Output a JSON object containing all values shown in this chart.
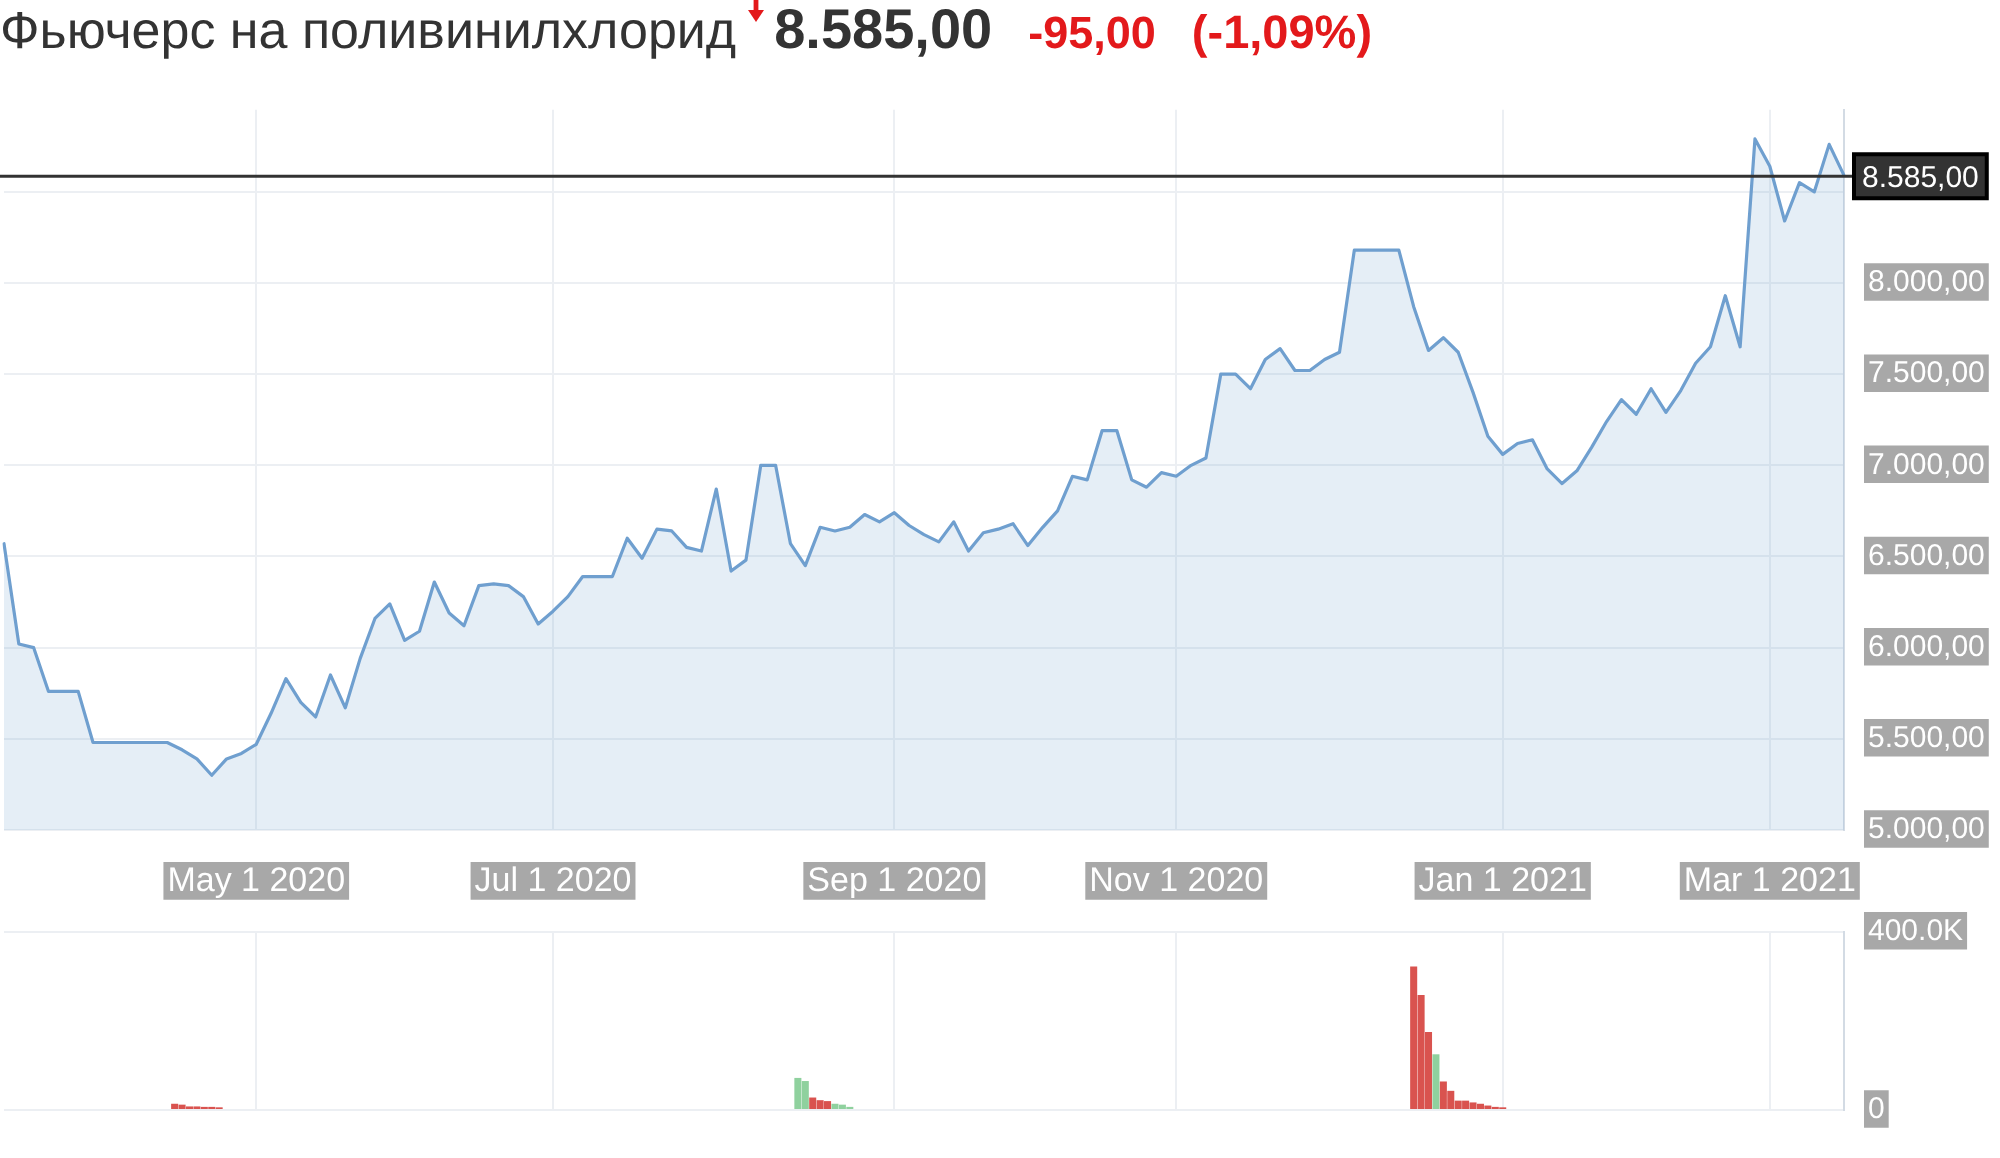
{
  "chart_data": [
    {
      "type": "area",
      "title": "Фьючерс на поливинилхлорид",
      "annotations": [
        "8.585,00",
        "-95,00",
        "(-1,09%)"
      ],
      "categories": [
        null,
        null,
        null,
        null,
        null,
        null,
        null,
        null,
        null,
        null,
        null,
        null,
        null,
        null,
        null,
        null,
        null,
        "May 1 2020",
        null,
        null,
        null,
        null,
        null,
        null,
        null,
        null,
        null,
        null,
        null,
        null,
        null,
        null,
        null,
        null,
        null,
        null,
        null,
        "Jul 1 2020",
        null,
        null,
        null,
        null,
        null,
        null,
        null,
        null,
        null,
        null,
        null,
        null,
        null,
        null,
        null,
        null,
        null,
        null,
        null,
        null,
        null,
        null,
        "Sep 1 2020",
        null,
        null,
        null,
        null,
        null,
        null,
        null,
        null,
        null,
        null,
        null,
        null,
        null,
        null,
        null,
        null,
        null,
        null,
        "Nov 1 2020",
        null,
        null,
        null,
        null,
        null,
        null,
        null,
        null,
        null,
        null,
        null,
        null,
        null,
        null,
        null,
        null,
        null,
        null,
        null,
        null,
        null,
        "Jan 1 2021",
        null,
        null,
        null,
        null,
        null,
        null,
        null,
        null,
        null,
        null,
        null,
        null,
        null,
        null,
        null,
        null,
        null,
        "Mar 1 2021",
        null,
        null,
        null,
        null,
        null
      ],
      "values": [
        6570,
        6020,
        6000,
        5760,
        5760,
        5760,
        5480,
        5480,
        5480,
        5480,
        5480,
        5480,
        5440,
        5390,
        5300,
        5390,
        5420,
        5470,
        5640,
        5830,
        5700,
        5620,
        5850,
        5670,
        5940,
        6160,
        6240,
        6040,
        6090,
        6360,
        6190,
        6120,
        6340,
        6350,
        6340,
        6280,
        6130,
        6200,
        6280,
        6390,
        6390,
        6390,
        6600,
        6490,
        6650,
        6640,
        6550,
        6530,
        6870,
        6420,
        6480,
        7000,
        7000,
        6570,
        6450,
        6660,
        6640,
        6660,
        6730,
        6690,
        6740,
        6670,
        6620,
        6580,
        6690,
        6530,
        6630,
        6650,
        6680,
        6560,
        6660,
        6750,
        6940,
        6920,
        7190,
        7190,
        6920,
        6880,
        6960,
        6940,
        7000,
        7040,
        7500,
        7500,
        7420,
        7580,
        7640,
        7520,
        7520,
        7580,
        7620,
        8180,
        8180,
        8180,
        8180,
        7870,
        7630,
        7700,
        7620,
        7400,
        7160,
        7060,
        7120,
        7140,
        6980,
        6900,
        6970,
        7100,
        7240,
        7360,
        7280,
        7420,
        7290,
        7410,
        7560,
        7650,
        7930,
        7650,
        8790,
        8640,
        8340,
        8550,
        8500,
        8760,
        8590
      ],
      "color": "#6f9fcf",
      "ylim": [
        5000,
        8950
      ],
      "yticks": [
        {
          "value": 5000,
          "label": "5.000,00"
        },
        {
          "value": 5500,
          "label": "5.500,00"
        },
        {
          "value": 6000,
          "label": "6.000,00"
        },
        {
          "value": 6500,
          "label": "6.500,00"
        },
        {
          "value": 7000,
          "label": "7.000,00"
        },
        {
          "value": 7500,
          "label": "7.500,00"
        },
        {
          "value": 8000,
          "label": "8.000,00"
        },
        {
          "value": 8500,
          "label": null
        }
      ],
      "grid": true,
      "ref_lines": [
        {
          "axis": "y",
          "value": 8585,
          "label": "8.585,00",
          "color": "#333333"
        }
      ]
    },
    {
      "type": "bar",
      "categories": [
        null,
        null,
        null,
        null,
        null,
        null,
        null,
        null,
        null,
        null,
        null,
        null,
        null,
        null,
        null,
        null,
        null,
        null,
        null,
        null,
        null,
        null,
        null,
        null,
        null,
        null,
        null,
        null,
        null,
        null,
        null,
        null,
        null,
        null,
        null,
        null,
        null,
        null,
        null,
        null,
        null,
        null,
        null,
        null,
        null,
        null,
        null,
        null,
        null,
        null,
        null,
        null,
        null,
        null,
        null,
        null,
        null,
        null,
        null,
        null,
        null,
        null,
        null,
        null,
        null,
        null,
        null,
        null,
        null,
        null,
        null,
        null,
        null,
        null,
        null,
        null,
        null,
        null,
        null,
        null,
        null,
        null,
        null,
        null,
        null,
        null,
        null,
        null,
        null,
        null,
        null,
        null,
        null,
        null,
        null,
        null,
        null,
        null,
        null,
        null,
        null,
        null,
        null,
        null,
        null,
        null,
        null,
        null,
        null,
        null,
        null,
        null,
        null,
        null,
        null,
        null,
        null,
        null,
        null,
        null,
        null,
        null,
        null,
        null,
        null,
        null,
        null,
        null,
        null,
        null,
        null,
        null,
        null,
        null,
        null,
        null,
        null,
        null,
        null,
        null,
        null,
        null,
        null,
        null,
        null,
        null,
        null,
        null,
        null,
        null,
        null,
        null,
        null,
        null,
        null,
        null,
        null,
        null,
        null,
        null,
        null,
        null,
        null,
        null,
        null,
        null,
        null,
        null,
        null,
        null,
        null,
        null,
        null,
        null,
        null,
        null,
        null,
        null,
        null,
        null,
        null,
        null,
        null,
        null,
        null,
        null,
        null,
        null,
        null,
        null,
        null,
        null,
        null,
        null,
        null,
        null,
        null,
        null,
        null,
        null,
        null,
        null,
        null,
        null,
        null,
        null,
        null,
        null,
        null,
        null,
        null,
        null,
        null,
        null,
        null,
        null,
        null,
        null,
        null,
        null,
        null,
        null,
        null,
        null,
        null,
        null,
        null,
        null,
        null,
        null,
        null,
        null,
        null,
        null,
        null,
        null,
        null,
        null,
        null,
        null,
        null,
        null,
        null,
        null,
        null,
        null,
        null,
        null,
        null
      ],
      "values": [
        null,
        null,
        null,
        null,
        null,
        null,
        null,
        null,
        null,
        null,
        null,
        null,
        null,
        null,
        null,
        null,
        null,
        null,
        null,
        null,
        null,
        null,
        null,
        14000,
        12000,
        8000,
        8000,
        7000,
        7000,
        6000,
        null,
        null,
        null,
        null,
        null,
        null,
        null,
        null,
        null,
        null,
        null,
        null,
        null,
        null,
        null,
        null,
        null,
        null,
        null,
        null,
        null,
        null,
        null,
        null,
        null,
        null,
        null,
        null,
        null,
        null,
        null,
        null,
        null,
        null,
        null,
        null,
        null,
        null,
        null,
        null,
        null,
        null,
        null,
        null,
        null,
        null,
        null,
        null,
        null,
        null,
        null,
        null,
        null,
        null,
        null,
        null,
        null,
        null,
        null,
        null,
        null,
        null,
        null,
        null,
        null,
        null,
        null,
        null,
        null,
        null,
        null,
        null,
        null,
        null,
        null,
        null,
        null,
        72000,
        65000,
        28000,
        22000,
        20000,
        14000,
        12000,
        7000,
        null,
        null,
        null,
        null,
        null,
        null,
        null,
        null,
        null,
        null,
        null,
        null,
        null,
        null,
        null,
        null,
        null,
        null,
        null,
        null,
        null,
        null,
        null,
        null,
        null,
        null,
        null,
        null,
        null,
        null,
        null,
        null,
        null,
        null,
        null,
        null,
        null,
        null,
        null,
        null,
        null,
        null,
        null,
        null,
        null,
        null,
        null,
        null,
        null,
        null,
        null,
        null,
        null,
        null,
        null,
        null,
        null,
        null,
        null,
        null,
        null,
        null,
        null,
        null,
        null,
        null,
        null,
        null,
        null,
        null,
        null,
        null,
        null,
        null,
        null,
        322000,
        258000,
        175000,
        125000,
        64000,
        43000,
        21000,
        21000,
        17000,
        14000,
        10000,
        7000,
        6000,
        null,
        null,
        null,
        null,
        null,
        null,
        null,
        null,
        null,
        null,
        null,
        null,
        null,
        null,
        null,
        null,
        null,
        null,
        null,
        null,
        null,
        null,
        null,
        null,
        null,
        null,
        null,
        null,
        null,
        null,
        null,
        null,
        null,
        null,
        null,
        null,
        null,
        null,
        null,
        null,
        null,
        null,
        null,
        null,
        null,
        null
      ],
      "colors": [
        null,
        null,
        null,
        null,
        null,
        null,
        null,
        null,
        null,
        null,
        null,
        null,
        null,
        null,
        null,
        null,
        null,
        null,
        null,
        null,
        null,
        null,
        null,
        "#d9534f",
        "#d9534f",
        "#d9534f",
        "#d9534f",
        "#d9534f",
        "#d9534f",
        "#d9534f",
        null,
        null,
        null,
        null,
        null,
        null,
        null,
        null,
        null,
        null,
        null,
        null,
        null,
        null,
        null,
        null,
        null,
        null,
        null,
        null,
        null,
        null,
        null,
        null,
        null,
        null,
        null,
        null,
        null,
        null,
        null,
        null,
        null,
        null,
        null,
        null,
        null,
        null,
        null,
        null,
        null,
        null,
        null,
        null,
        null,
        null,
        null,
        null,
        null,
        null,
        null,
        null,
        null,
        null,
        null,
        null,
        null,
        null,
        null,
        null,
        null,
        null,
        null,
        null,
        null,
        null,
        null,
        null,
        null,
        null,
        null,
        null,
        null,
        null,
        null,
        null,
        null,
        "#8fd19e",
        "#8fd19e",
        "#d9534f",
        "#d9534f",
        "#d9534f",
        "#8fd19e",
        "#8fd19e",
        "#8fd19e",
        null,
        null,
        null,
        null,
        null,
        null,
        null,
        null,
        null,
        null,
        null,
        null,
        null,
        null,
        null,
        null,
        null,
        null,
        null,
        null,
        null,
        null,
        null,
        null,
        null,
        null,
        null,
        null,
        null,
        null,
        null,
        null,
        null,
        null,
        null,
        null,
        null,
        null,
        null,
        null,
        null,
        null,
        null,
        null,
        null,
        null,
        null,
        null,
        null,
        null,
        null,
        null,
        null,
        null,
        null,
        null,
        null,
        null,
        null,
        null,
        null,
        null,
        null,
        null,
        null,
        null,
        null,
        null,
        null,
        null,
        null,
        null,
        null,
        null,
        null,
        "#d9534f",
        "#d9534f",
        "#d9534f",
        "#8fd19e",
        "#d9534f",
        "#d9534f",
        "#d9534f",
        "#d9534f",
        "#d9534f",
        "#d9534f",
        "#d9534f",
        "#d9534f",
        "#d9534f",
        null,
        null,
        null,
        null,
        null,
        null,
        null,
        null,
        null,
        null,
        null,
        null,
        null,
        null,
        null,
        null,
        null,
        null,
        null,
        null,
        null,
        null,
        null,
        null,
        null,
        null,
        null,
        null,
        null,
        null,
        null,
        null,
        null,
        null,
        null,
        null,
        null,
        null,
        null,
        null,
        null,
        null,
        null,
        null,
        null,
        null
      ],
      "ylim": [
        0,
        400000
      ],
      "yticks": [
        {
          "value": 400000,
          "label": "400.0K"
        },
        0
      ],
      "grid": true,
      "tick_labels": "y"
    }
  ]
}
